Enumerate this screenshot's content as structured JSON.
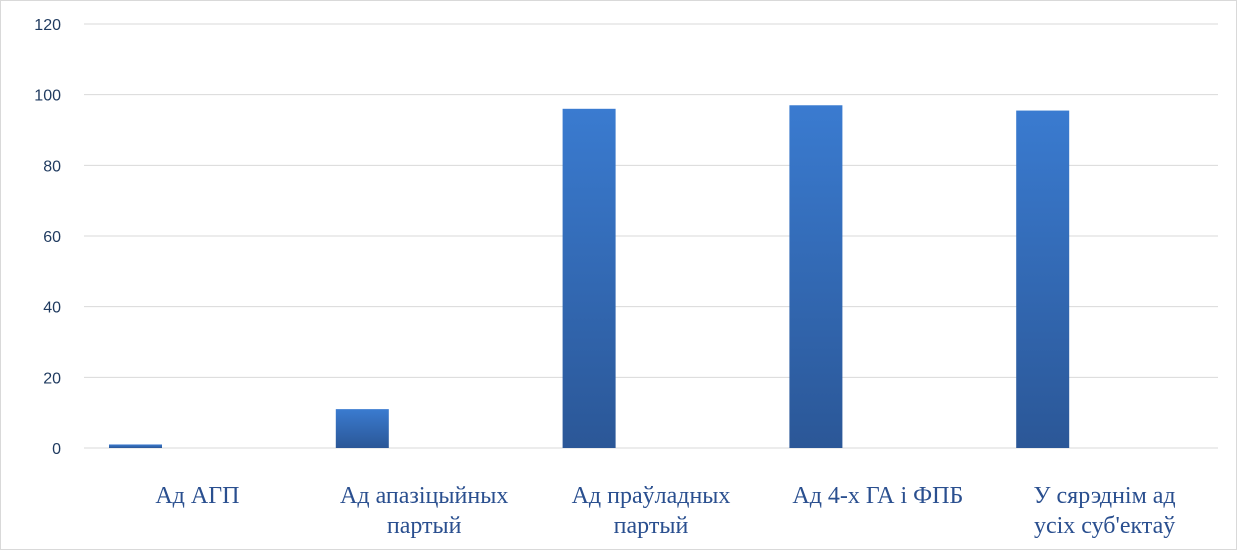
{
  "chart_data": {
    "type": "bar",
    "categories": [
      [
        "Ад АГП"
      ],
      [
        "Ад апазіцыйных",
        "партый"
      ],
      [
        "Ад праўладных",
        "партый"
      ],
      [
        "Ад 4-х ГА і ФПБ"
      ],
      [
        "У сярэднім ад",
        "усіх суб'ектаў"
      ]
    ],
    "values": [
      1,
      11,
      96,
      97,
      95.5
    ],
    "ylim": [
      0,
      120
    ],
    "yticks": [
      0,
      20,
      40,
      60,
      80,
      100,
      120
    ],
    "grid": true,
    "legend": "none",
    "colors": {
      "bar_top": "#3a7bd0",
      "bar_bottom": "#2b5797",
      "grid": "#d9d9d9",
      "tick_text": "#1f3a5f",
      "category_text": "#2a4f8f"
    }
  }
}
